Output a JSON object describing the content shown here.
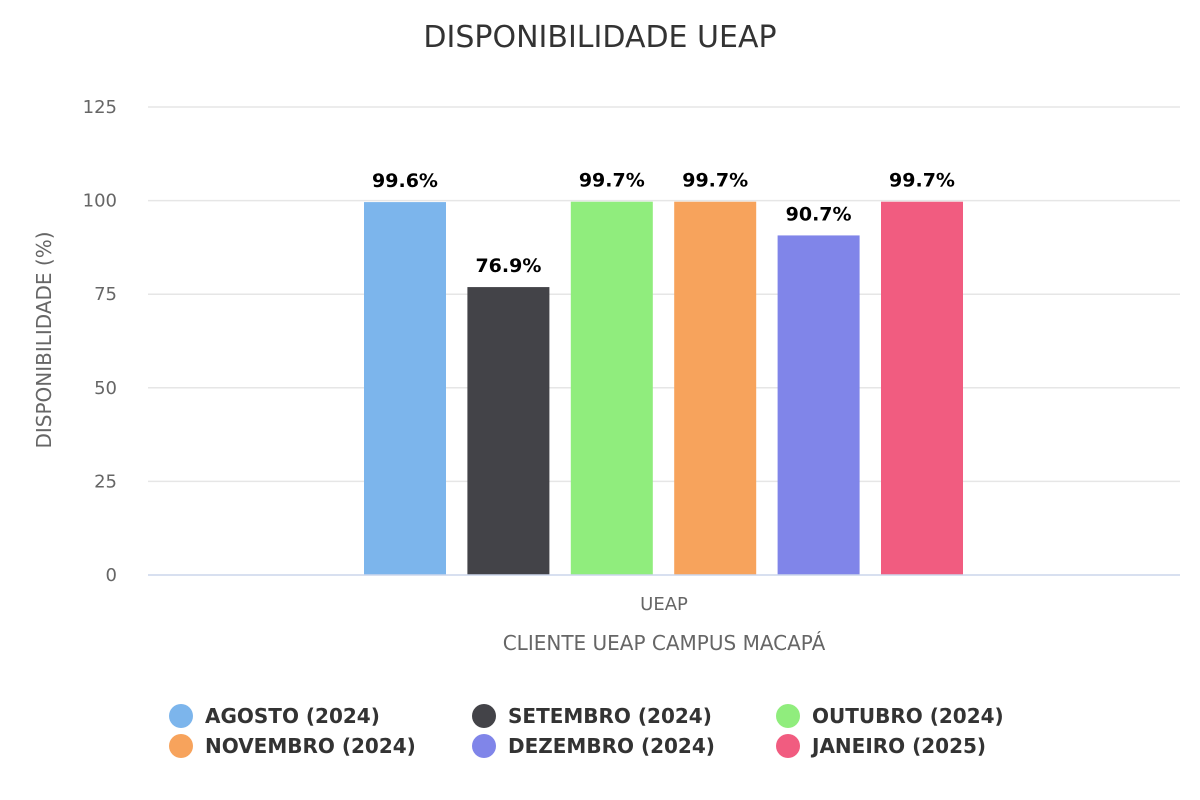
{
  "chart_data": {
    "type": "bar",
    "title": "DISPONIBILIDADE UEAP",
    "ylabel": "DISPONIBILIDADE (%)",
    "xlabel": "CLIENTE UEAP CAMPUS MACAPÁ",
    "categories": [
      "UEAP"
    ],
    "ylim": [
      0,
      125
    ],
    "yticks": [
      0,
      25,
      50,
      75,
      100,
      125
    ],
    "grid": true,
    "legend_position": "bottom",
    "series": [
      {
        "name": "AGOSTO (2024)",
        "values": [
          99.6
        ],
        "label": "99.6%",
        "color": "#7cb5ec"
      },
      {
        "name": "SETEMBRO (2024)",
        "values": [
          76.9
        ],
        "label": "76.9%",
        "color": "#434348"
      },
      {
        "name": "OUTUBRO (2024)",
        "values": [
          99.7
        ],
        "label": "99.7%",
        "color": "#90ed7d"
      },
      {
        "name": "NOVEMBRO (2024)",
        "values": [
          99.7
        ],
        "label": "99.7%",
        "color": "#f7a35c"
      },
      {
        "name": "DEZEMBRO (2024)",
        "values": [
          90.7
        ],
        "label": "90.7%",
        "color": "#8085e9"
      },
      {
        "name": "JANEIRO (2025)",
        "values": [
          99.7
        ],
        "label": "99.7%",
        "color": "#f15c80"
      }
    ]
  }
}
